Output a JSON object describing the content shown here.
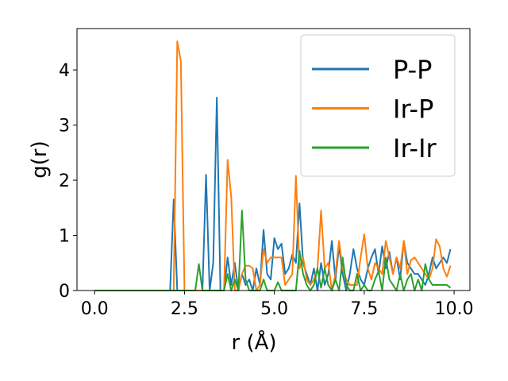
{
  "chart_data": {
    "type": "line",
    "xlabel": "r (Å)",
    "ylabel": "g(r)",
    "x": [
      0,
      0.1,
      0.2,
      0.3,
      0.4,
      0.5,
      0.6,
      0.7,
      0.8,
      0.9,
      1,
      1.1,
      1.2,
      1.3,
      1.4,
      1.5,
      1.6,
      1.7,
      1.8,
      1.9,
      2,
      2.1,
      2.2,
      2.3,
      2.4,
      2.5,
      2.6,
      2.7,
      2.8,
      2.9,
      3,
      3.1,
      3.2,
      3.3,
      3.4,
      3.5,
      3.6,
      3.7,
      3.8,
      3.9,
      4,
      4.1,
      4.2,
      4.3,
      4.4,
      4.5,
      4.6,
      4.7,
      4.8,
      4.9,
      5,
      5.1,
      5.2,
      5.3,
      5.4,
      5.5,
      5.6,
      5.7,
      5.8,
      5.9,
      6,
      6.1,
      6.2,
      6.3,
      6.4,
      6.5,
      6.6,
      6.7,
      6.8,
      6.9,
      7,
      7.1,
      7.2,
      7.3,
      7.4,
      7.5,
      7.6,
      7.7,
      7.8,
      7.9,
      8,
      8.1,
      8.2,
      8.3,
      8.4,
      8.5,
      8.6,
      8.7,
      8.8,
      8.9,
      9,
      9.1,
      9.2,
      9.3,
      9.4,
      9.5,
      9.6,
      9.7,
      9.8,
      9.9
    ],
    "series": [
      {
        "name": "P-P",
        "color": "#1f77b4",
        "values": [
          0,
          0,
          0,
          0,
          0,
          0,
          0,
          0,
          0,
          0,
          0,
          0,
          0,
          0,
          0,
          0,
          0,
          0,
          0,
          0,
          0,
          0,
          1.65,
          0,
          0,
          0,
          0,
          0,
          0,
          0,
          0,
          2.1,
          0,
          0.5,
          3.5,
          0,
          0,
          0.6,
          0.1,
          0.5,
          0,
          0.3,
          0.1,
          0.2,
          0,
          0.4,
          0.1,
          1.1,
          0.3,
          0.2,
          0.95,
          0.75,
          0.85,
          0.3,
          0.4,
          0.65,
          0.5,
          1.58,
          0.5,
          0.3,
          0.1,
          0.4,
          0,
          0.5,
          0.1,
          0.3,
          0.9,
          0.2,
          0.8,
          0.3,
          0,
          0.3,
          0.75,
          0.4,
          0.2,
          0.1,
          0.4,
          0.6,
          0.75,
          0.3,
          0.8,
          0.4,
          0.7,
          0.3,
          0.6,
          0.2,
          0.9,
          0.5,
          0.4,
          0.3,
          0.3,
          0.2,
          0.1,
          0.3,
          0.6,
          0.4,
          0.5,
          0.6,
          0.5,
          0.75
        ]
      },
      {
        "name": "Ir-P",
        "color": "#ff7f0e",
        "values": [
          0,
          0,
          0,
          0,
          0,
          0,
          0,
          0,
          0,
          0,
          0,
          0,
          0,
          0,
          0,
          0,
          0,
          0,
          0,
          0,
          0,
          0,
          0,
          4.52,
          4.15,
          0,
          0,
          0,
          0,
          0,
          0,
          0,
          0,
          0,
          0,
          0,
          0,
          2.37,
          1.7,
          0,
          0,
          0.3,
          0.45,
          0.45,
          0.4,
          0,
          0.1,
          0.75,
          0.5,
          0.6,
          0.6,
          0.6,
          0.6,
          0.1,
          0.2,
          0.3,
          2.08,
          0.4,
          0.6,
          0.2,
          0.1,
          0.2,
          0.4,
          1.45,
          0.4,
          0.5,
          0,
          0.3,
          0.9,
          0.4,
          0.2,
          0.1,
          0.1,
          0.1,
          0.6,
          1.02,
          0.4,
          0.2,
          0.5,
          0.4,
          0.3,
          0.9,
          0.6,
          0.3,
          0.6,
          0.4,
          0.9,
          0.3,
          0.55,
          0.6,
          0.5,
          0.4,
          0.3,
          0.2,
          0.4,
          0.93,
          0.8,
          0.4,
          0.25,
          0.45
        ]
      },
      {
        "name": "Ir-Ir",
        "color": "#2ca02c",
        "values": [
          0,
          0,
          0,
          0,
          0,
          0,
          0,
          0,
          0,
          0,
          0,
          0,
          0,
          0,
          0,
          0,
          0,
          0,
          0,
          0,
          0,
          0,
          0,
          0,
          0,
          0,
          0,
          0,
          0,
          0.48,
          0,
          0,
          0,
          0,
          0,
          0,
          0,
          0.3,
          0,
          0.2,
          0,
          1.45,
          0.2,
          0,
          0,
          0,
          0,
          0.2,
          0,
          0,
          0,
          0.15,
          0,
          0,
          0,
          0,
          0,
          0.72,
          0.3,
          0.1,
          0,
          0.1,
          0.4,
          0.05,
          0.4,
          0.1,
          0,
          0.2,
          0,
          0.6,
          0.1,
          0,
          0,
          0.3,
          0,
          0.1,
          0,
          0,
          0.2,
          0.35,
          0,
          0.6,
          0.2,
          0.1,
          0,
          0.3,
          0,
          0.2,
          0.3,
          0,
          0.2,
          0,
          0.48,
          0.2,
          0.1,
          0.1,
          0.1,
          0.1,
          0.1,
          0.05
        ]
      }
    ],
    "xlim": [
      -0.49,
      10.44
    ],
    "ylim": [
      0,
      4.75
    ],
    "xticks": [
      {
        "value": 0,
        "label": "0.0"
      },
      {
        "value": 2.5,
        "label": "2.5"
      },
      {
        "value": 5,
        "label": "5.0"
      },
      {
        "value": 7.5,
        "label": "7.5"
      },
      {
        "value": 10,
        "label": "10.0"
      }
    ],
    "yticks": [
      0,
      1,
      2,
      3,
      4
    ],
    "legend": "upper right"
  }
}
